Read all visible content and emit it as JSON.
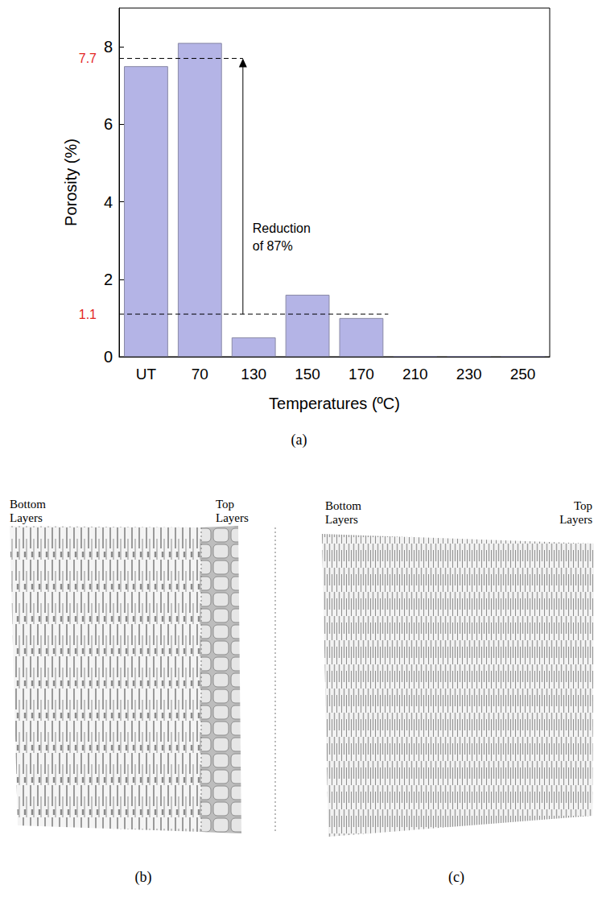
{
  "chart_data": {
    "type": "bar",
    "categories": [
      "UT",
      "70",
      "130",
      "150",
      "170",
      "210",
      "230",
      "250"
    ],
    "values": [
      7.5,
      8.1,
      0.5,
      1.6,
      1.0,
      0.02,
      0.02,
      0.02
    ],
    "color": "#b4b4e6",
    "x_label": "Temperatures (ºC)",
    "y_label": "Porosity (%)",
    "ylim": [
      0,
      9
    ],
    "yticks": [
      0,
      2,
      4,
      6,
      8
    ],
    "grid": false,
    "reference_lines": [
      {
        "value": 7.7,
        "label": "7.7",
        "color": "#e3261f"
      },
      {
        "value": 1.1,
        "label": "1.1",
        "color": "#e3261f"
      }
    ],
    "annotation": {
      "text": "Reduction of 87%",
      "from": 1.1,
      "to": 7.7
    },
    "panel_label": "(a)"
  },
  "panels": [
    {
      "label": "(b)",
      "left_text": "Bottom Layers",
      "right_text": "Top Layers"
    },
    {
      "label": "(c)",
      "left_text": "Bottom Layers",
      "right_text": "Top Layers"
    }
  ]
}
